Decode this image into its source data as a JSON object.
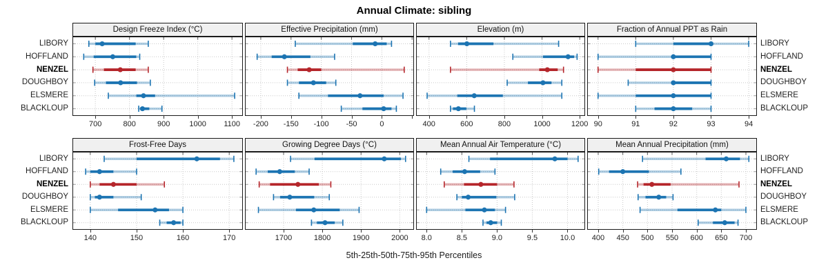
{
  "title": "Annual Climate: sibling",
  "caption": "5th-25th-50th-75th-95th Percentiles",
  "stations": [
    "LIBORY",
    "HOFFLAND",
    "NENZEL",
    "DOUGHBOY",
    "ELSMERE",
    "BLACKLOUP"
  ],
  "highlight_station": "NENZEL",
  "colors": {
    "series_blue": "#1c74b2",
    "series_red": "#b5262b",
    "grid": "#c8c8c8",
    "panel_border": "#1a1a1a",
    "header_bg": "#f0f0f0",
    "text": "#1f1f1f"
  },
  "chart_data": {
    "type": "percentile-dotplot",
    "layout": "2 rows x 4 columns, shared station rows, grid on, station labels on both sides",
    "percentile_labels": [
      "5th",
      "25th",
      "50th",
      "75th",
      "95th"
    ],
    "panels": [
      {
        "title": "Design Freeze Index (°C)",
        "row": 0,
        "col": 0,
        "xlim": [
          635,
          1130
        ],
        "ticks": [
          700,
          800,
          900,
          1000,
          1100
        ],
        "tick_labels": [
          "700",
          "800",
          "900",
          "1000",
          "1100"
        ],
        "series": [
          {
            "station": "LIBORY",
            "percentiles": [
              681,
              700,
              720,
              818,
              855
            ]
          },
          {
            "station": "HOFFLAND",
            "percentiles": [
              666,
              695,
              751,
              820,
              830
            ]
          },
          {
            "station": "NENZEL",
            "percentiles": [
              693,
              725,
              773,
              818,
              855
            ]
          },
          {
            "station": "DOUGHBOY",
            "percentiles": [
              698,
              731,
              774,
              822,
              861
            ]
          },
          {
            "station": "ELSMERE",
            "percentiles": [
              738,
              820,
              841,
              875,
              1108
            ]
          },
          {
            "station": "BLACKLOUP",
            "percentiles": [
              827,
              831,
              838,
              858,
              895
            ]
          }
        ]
      },
      {
        "title": "Effective Precipitation (mm)",
        "row": 0,
        "col": 1,
        "xlim": [
          -225,
          52
        ],
        "ticks": [
          -200,
          -150,
          -100,
          -50,
          0,
          50
        ],
        "tick_labels": [
          "-200",
          "-150",
          "-100",
          "-50",
          "0",
          ""
        ],
        "series": [
          {
            "station": "LIBORY",
            "percentiles": [
              -143,
              -48,
              -11,
              8,
              16
            ]
          },
          {
            "station": "HOFFLAND",
            "percentiles": [
              -206,
              -182,
              -161,
              -118,
              -78
            ]
          },
          {
            "station": "NENZEL",
            "percentiles": [
              -156,
              -139,
              -120,
              -100,
              37
            ]
          },
          {
            "station": "DOUGHBOY",
            "percentiles": [
              -156,
              -137,
              -113,
              -92,
              -76
            ]
          },
          {
            "station": "ELSMERE",
            "percentiles": [
              -137,
              -89,
              -36,
              3,
              35
            ]
          },
          {
            "station": "BLACKLOUP",
            "percentiles": [
              -67,
              -32,
              3,
              16,
              24
            ]
          }
        ]
      },
      {
        "title": "Elevation (m)",
        "row": 0,
        "col": 2,
        "xlim": [
          335,
          1225
        ],
        "ticks": [
          400,
          600,
          800,
          1000,
          1200
        ],
        "tick_labels": [
          "400",
          "600",
          "800",
          "1000",
          "1200"
        ],
        "series": [
          {
            "station": "LIBORY",
            "percentiles": [
              514,
              554,
              601,
              742,
              1088
            ]
          },
          {
            "station": "HOFFLAND",
            "percentiles": [
              845,
              1005,
              1138,
              1170,
              1186
            ]
          },
          {
            "station": "NENZEL",
            "percentiles": [
              514,
              985,
              1028,
              1083,
              1114
            ]
          },
          {
            "station": "DOUGHBOY",
            "percentiles": [
              815,
              925,
              1005,
              1050,
              1105
            ]
          },
          {
            "station": "ELSMERE",
            "percentiles": [
              390,
              550,
              640,
              792,
              1105
            ]
          },
          {
            "station": "BLACKLOUP",
            "percentiles": [
              514,
              527,
              556,
              598,
              641
            ]
          }
        ]
      },
      {
        "title": "Fraction of Annual PPT as Rain",
        "row": 0,
        "col": 3,
        "xlim": [
          89.73,
          94.2
        ],
        "ticks": [
          90,
          91,
          92,
          93,
          94
        ],
        "tick_labels": [
          "90",
          "91",
          "92",
          "93",
          "94"
        ],
        "series": [
          {
            "station": "LIBORY",
            "percentiles": [
              91,
              92,
              93,
              93,
              94
            ]
          },
          {
            "station": "HOFFLAND",
            "percentiles": [
              90,
              92,
              92,
              93,
              93
            ]
          },
          {
            "station": "NENZEL",
            "percentiles": [
              90,
              91,
              92,
              93,
              93
            ]
          },
          {
            "station": "DOUGHBOY",
            "percentiles": [
              90.8,
              92,
              92,
              93,
              93
            ]
          },
          {
            "station": "ELSMERE",
            "percentiles": [
              90,
              91,
              92,
              93,
              93
            ]
          },
          {
            "station": "BLACKLOUP",
            "percentiles": [
              91,
              91.5,
              92,
              92.5,
              93
            ]
          }
        ]
      },
      {
        "title": "Frost-Free Days",
        "row": 1,
        "col": 0,
        "xlim": [
          136.3,
          172.8
        ],
        "ticks": [
          140,
          150,
          160,
          170
        ],
        "tick_labels": [
          "140",
          "150",
          "160",
          "170"
        ],
        "series": [
          {
            "station": "LIBORY",
            "percentiles": [
              143,
              150,
              163,
              168,
              171
            ]
          },
          {
            "station": "HOFFLAND",
            "percentiles": [
              139,
              140,
              142,
              145,
              150
            ]
          },
          {
            "station": "NENZEL",
            "percentiles": [
              140,
              142,
              145,
              150,
              156
            ]
          },
          {
            "station": "DOUGHBOY",
            "percentiles": [
              140,
              141,
              142,
              145,
              151
            ]
          },
          {
            "station": "ELSMERE",
            "percentiles": [
              140,
              146,
              154,
              157,
              160
            ]
          },
          {
            "station": "BLACKLOUP",
            "percentiles": [
              155,
              156.5,
              158,
              159.5,
              160
            ]
          }
        ]
      },
      {
        "title": "Growing Degree Days (°C)",
        "row": 1,
        "col": 1,
        "xlim": [
          1602,
          2035
        ],
        "ticks": [
          1700,
          1800,
          1900,
          2000
        ],
        "tick_labels": [
          "1700",
          "1800",
          "1900",
          "2000"
        ],
        "series": [
          {
            "station": "LIBORY",
            "percentiles": [
              1718,
              1780,
              1960,
              2003,
              2015
            ]
          },
          {
            "station": "HOFFLAND",
            "percentiles": [
              1629,
              1659,
              1690,
              1729,
              1766
            ]
          },
          {
            "station": "NENZEL",
            "percentiles": [
              1637,
              1665,
              1737,
              1791,
              1822
            ]
          },
          {
            "station": "DOUGHBOY",
            "percentiles": [
              1674,
              1691,
              1716,
              1779,
              1818
            ]
          },
          {
            "station": "ELSMERE",
            "percentiles": [
              1635,
              1732,
              1778,
              1845,
              1895
            ]
          },
          {
            "station": "BLACKLOUP",
            "percentiles": [
              1772,
              1786,
              1807,
              1832,
              1853
            ]
          }
        ]
      },
      {
        "title": "Mean Annual Air Temperature (°C)",
        "row": 1,
        "col": 2,
        "xlim": [
          7.86,
          10.24
        ],
        "ticks": [
          8.0,
          8.5,
          9.0,
          9.5,
          10.0
        ],
        "tick_labels": [
          "8.0",
          "8.5",
          "9.0",
          "9.5",
          "10.0"
        ],
        "series": [
          {
            "station": "LIBORY",
            "percentiles": [
              8.6,
              8.9,
              9.82,
              10.0,
              10.15
            ]
          },
          {
            "station": "HOFFLAND",
            "percentiles": [
              8.2,
              8.37,
              8.54,
              8.76,
              8.97
            ]
          },
          {
            "station": "NENZEL",
            "percentiles": [
              8.25,
              8.53,
              8.77,
              9.0,
              9.24
            ]
          },
          {
            "station": "DOUGHBOY",
            "percentiles": [
              8.43,
              8.5,
              8.59,
              8.99,
              9.25
            ]
          },
          {
            "station": "ELSMERE",
            "percentiles": [
              8.0,
              8.55,
              8.82,
              8.97,
              9.12
            ]
          },
          {
            "station": "BLACKLOUP",
            "percentiles": [
              8.8,
              8.85,
              8.91,
              9.0,
              9.06
            ]
          }
        ]
      },
      {
        "title": "Mean Annual Precipitation (mm)",
        "row": 1,
        "col": 3,
        "xlim": [
          379,
          721
        ],
        "ticks": [
          400,
          450,
          500,
          550,
          600,
          650,
          700
        ],
        "tick_labels": [
          "400",
          "450",
          "500",
          "550",
          "600",
          "650",
          "700"
        ],
        "series": [
          {
            "station": "LIBORY",
            "percentiles": [
              490,
              618,
              660,
              688,
              706
            ]
          },
          {
            "station": "HOFFLAND",
            "percentiles": [
              401,
              422,
              450,
              503,
              568
            ]
          },
          {
            "station": "NENZEL",
            "percentiles": [
              480,
              492,
              509,
              547,
              686
            ]
          },
          {
            "station": "DOUGHBOY",
            "percentiles": [
              481,
              496,
              523,
              538,
              552
            ]
          },
          {
            "station": "ELSMERE",
            "percentiles": [
              485,
              561,
              638,
              650,
              700
            ]
          },
          {
            "station": "BLACKLOUP",
            "percentiles": [
              603,
              633,
              657,
              677,
              684
            ]
          }
        ]
      }
    ]
  }
}
